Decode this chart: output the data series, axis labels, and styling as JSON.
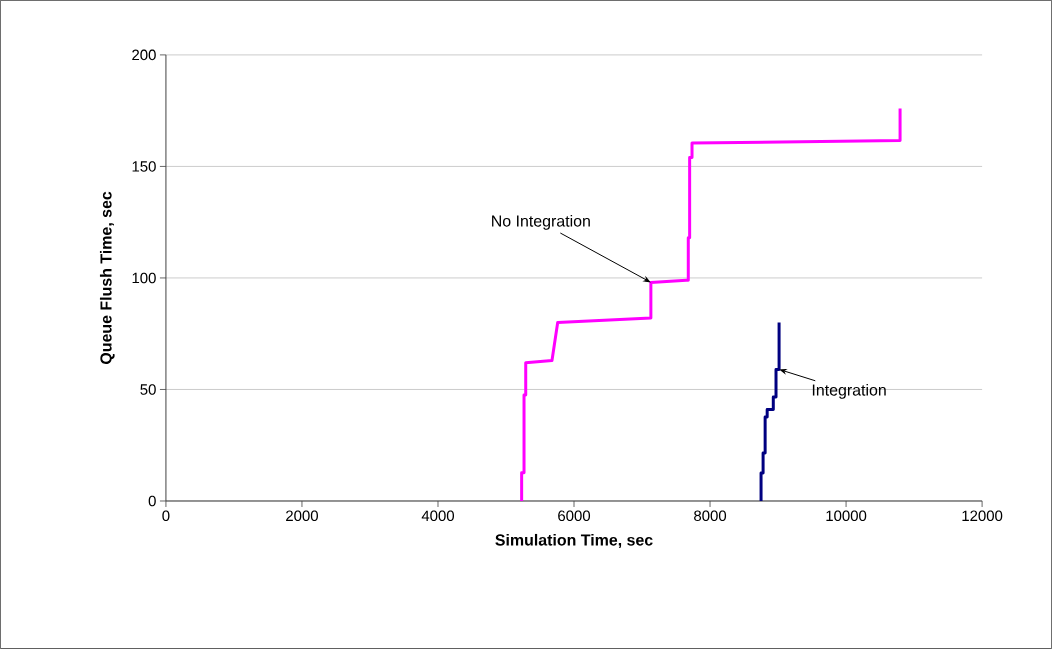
{
  "chart_data": {
    "type": "line",
    "xlabel": "Simulation Time, sec",
    "ylabel": "Queue Flush Time, sec",
    "xlim": [
      0,
      12000
    ],
    "xticks": [
      0,
      2000,
      4000,
      6000,
      8000,
      10000,
      12000
    ],
    "ylim": [
      0,
      200
    ],
    "yticks": [
      0,
      50,
      100,
      150,
      200
    ],
    "grid": "y",
    "marker": "none",
    "line_style": "solid",
    "series": [
      {
        "color": "#ff00ff",
        "x": [
          5230,
          5230,
          5265,
          5265,
          5290,
          5290,
          5676,
          5676,
          5760,
          5760,
          7130,
          7130,
          7650,
          7680,
          7680,
          7700,
          7700,
          7735,
          7735,
          10794,
          10794
        ],
        "values": [
          0,
          12.7,
          12.7,
          47.5,
          47.5,
          62,
          63,
          63,
          80,
          80,
          82,
          98,
          99,
          99,
          118,
          118,
          154,
          154,
          160.5,
          161.6,
          176
        ]
      },
      {
        "color": "#000080",
        "x": [
          8750,
          8750,
          8780,
          8780,
          8810,
          8810,
          8840,
          8840,
          8930,
          8930,
          8970,
          8970,
          9015,
          9015
        ],
        "values": [
          0,
          12.5,
          12.5,
          21.5,
          21.5,
          37.7,
          37.7,
          41,
          41,
          46.6,
          46.6,
          59,
          59,
          80
        ]
      }
    ],
    "annotations": [
      {
        "text": "No Integration",
        "x": 7130,
        "y": 98
      },
      {
        "text": "Integration",
        "x": 9015,
        "y": 59
      }
    ]
  }
}
